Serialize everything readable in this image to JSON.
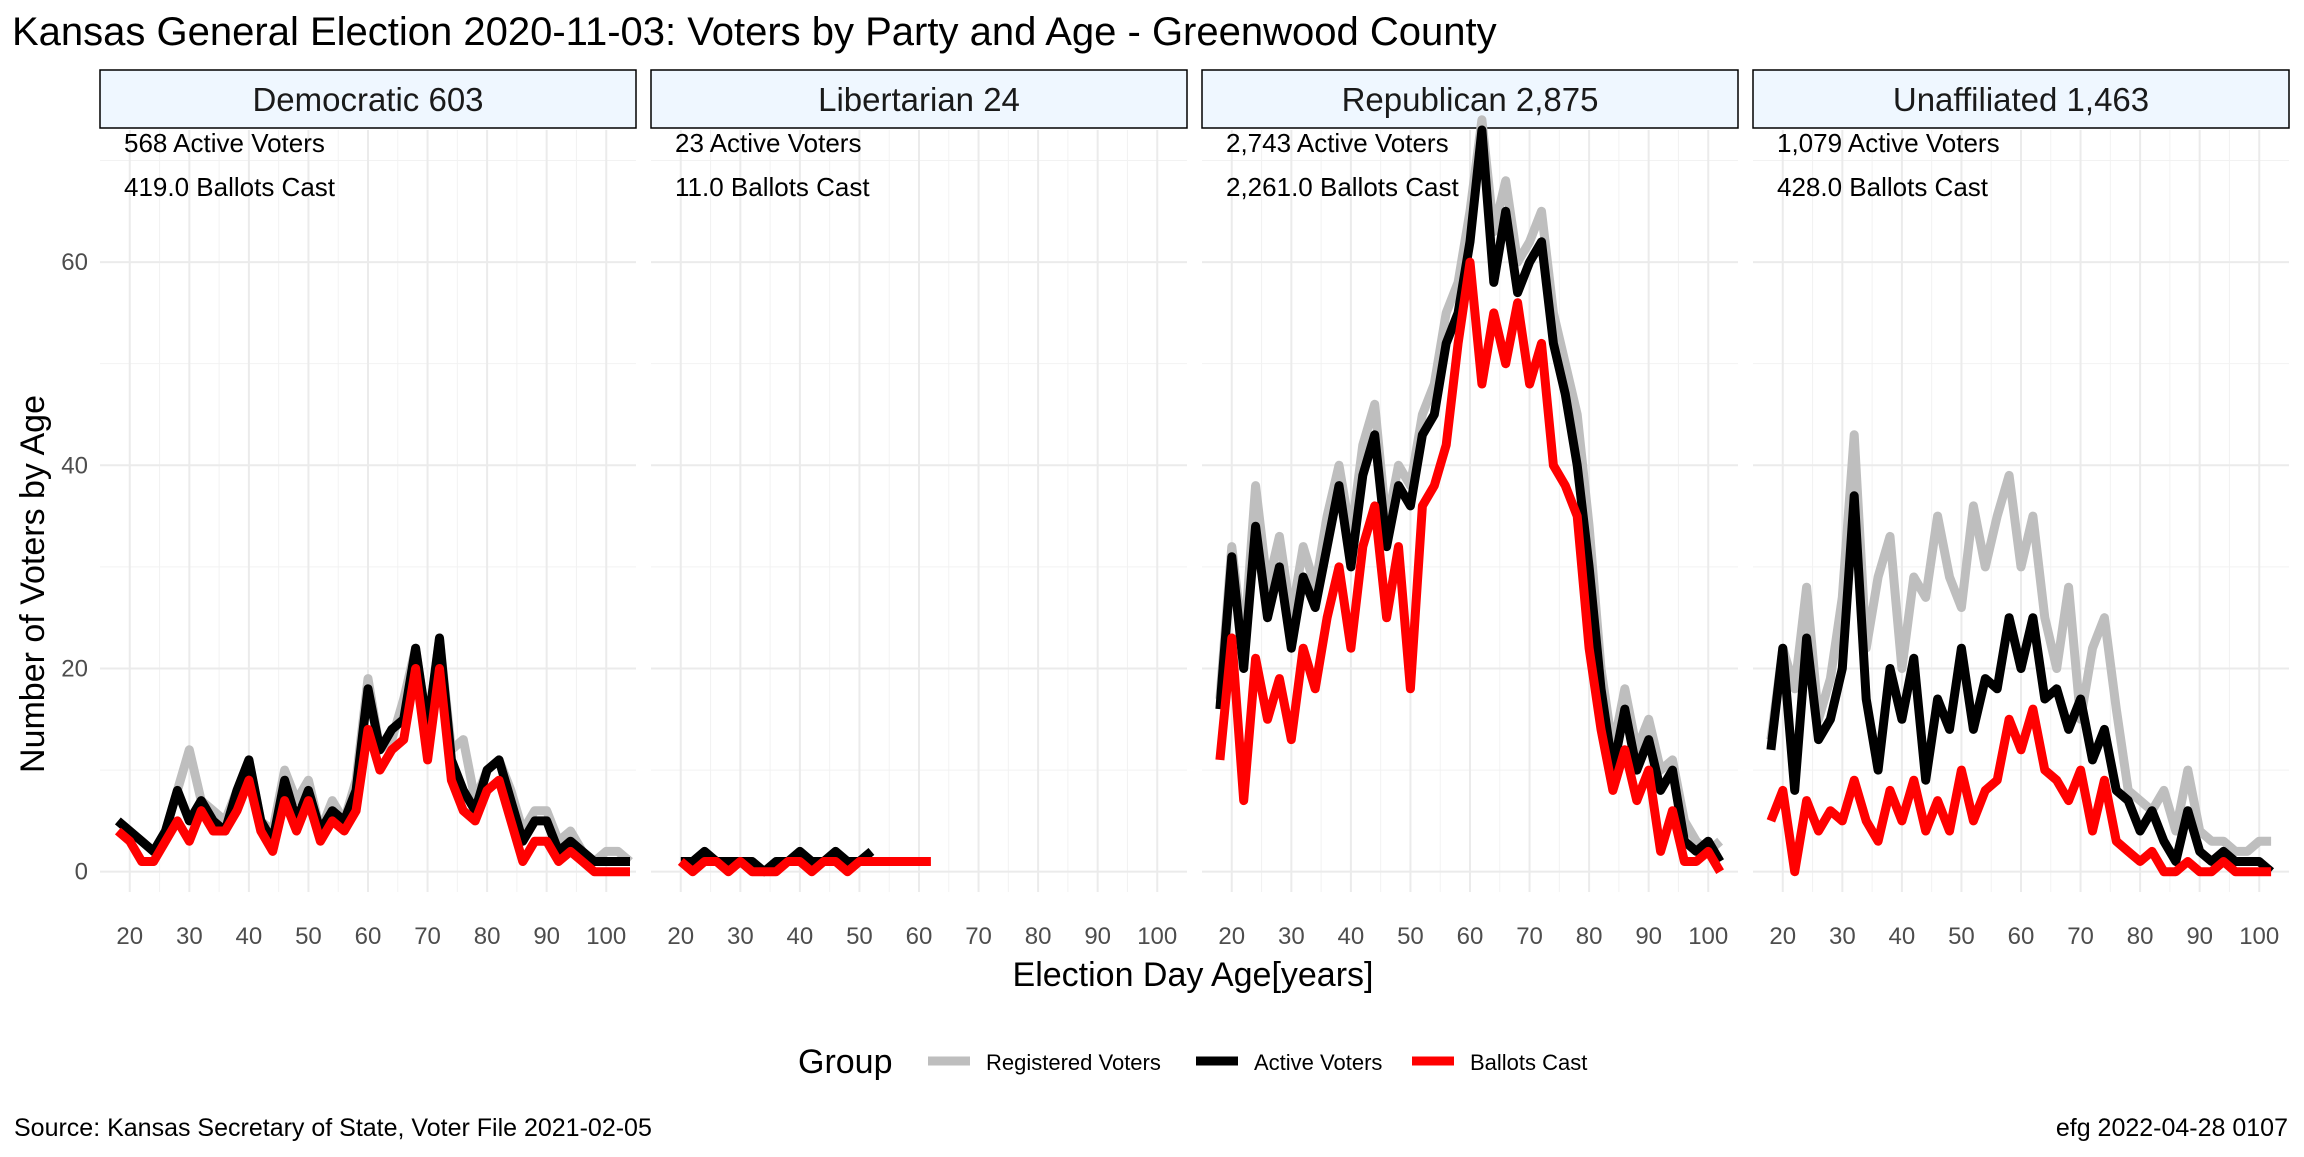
{
  "chart_data": {
    "type": "line",
    "title": "Kansas General Election 2020-11-03:  Voters by Party and Age - Greenwood County",
    "xlabel": "Election Day Age[years]",
    "ylabel": "Number of Voters by Age",
    "xlim": [
      15,
      105
    ],
    "ylim": [
      -2,
      73
    ],
    "x_ticks": [
      20,
      30,
      40,
      50,
      60,
      70,
      80,
      90,
      100
    ],
    "y_ticks": [
      0,
      20,
      40,
      60
    ],
    "legend": {
      "title": "Group",
      "position": "bottom",
      "entries": [
        {
          "label": "Registered Voters",
          "color": "#bebebe"
        },
        {
          "label": "Active Voters",
          "color": "#000000"
        },
        {
          "label": "Ballots Cast",
          "color": "#ff0000"
        }
      ]
    },
    "caption_left": "Source:  Kansas Secretary of State, Voter File  2021-02-05",
    "caption_right": "efg 2022-04-28 0107",
    "colors": {
      "registered": "#bebebe",
      "active": "#000000",
      "ballots": "#ff0000",
      "strip_fill": "#eff7ff",
      "grid": "#ebebeb"
    },
    "panels": [
      {
        "strip": "Democratic 603",
        "active_text": "568 Active Voters",
        "ballots_text": "419.0 Ballots Cast",
        "series": [
          {
            "name": "Registered Voters",
            "x": [
              18,
              20,
              22,
              24,
              26,
              28,
              30,
              32,
              34,
              36,
              38,
              40,
              42,
              44,
              46,
              48,
              50,
              52,
              54,
              56,
              58,
              60,
              62,
              64,
              66,
              68,
              70,
              72,
              74,
              76,
              78,
              80,
              82,
              84,
              86,
              88,
              90,
              92,
              94,
              96,
              98,
              100,
              102,
              104
            ],
            "y": [
              5,
              4,
              3,
              2,
              4,
              8,
              12,
              7,
              6,
              5,
              8,
              11,
              5,
              4,
              10,
              7,
              9,
              4,
              7,
              5,
              9,
              19,
              12,
              13,
              17,
              22,
              14,
              23,
              12,
              13,
              7,
              10,
              11,
              8,
              4,
              6,
              6,
              3,
              4,
              2,
              1,
              2,
              2,
              1
            ]
          },
          {
            "name": "Active Voters",
            "x": [
              18,
              20,
              22,
              24,
              26,
              28,
              30,
              32,
              34,
              36,
              38,
              40,
              42,
              44,
              46,
              48,
              50,
              52,
              54,
              56,
              58,
              60,
              62,
              64,
              66,
              68,
              70,
              72,
              74,
              76,
              78,
              80,
              82,
              84,
              86,
              88,
              90,
              92,
              94,
              96,
              98,
              100,
              102,
              104
            ],
            "y": [
              5,
              4,
              3,
              2,
              4,
              8,
              5,
              7,
              5,
              4,
              8,
              11,
              5,
              3,
              9,
              5,
              8,
              4,
              6,
              5,
              8,
              18,
              12,
              14,
              15,
              22,
              14,
              23,
              11,
              8,
              6,
              10,
              11,
              7,
              3,
              5,
              5,
              2,
              3,
              2,
              1,
              1,
              1,
              1
            ]
          },
          {
            "name": "Ballots Cast",
            "x": [
              18,
              20,
              22,
              24,
              26,
              28,
              30,
              32,
              34,
              36,
              38,
              40,
              42,
              44,
              46,
              48,
              50,
              52,
              54,
              56,
              58,
              60,
              62,
              64,
              66,
              68,
              70,
              72,
              74,
              76,
              78,
              80,
              82,
              84,
              86,
              88,
              90,
              92,
              94,
              96,
              98,
              100,
              102,
              104
            ],
            "y": [
              4,
              3,
              1,
              1,
              3,
              5,
              3,
              6,
              4,
              4,
              6,
              9,
              4,
              2,
              7,
              4,
              7,
              3,
              5,
              4,
              6,
              14,
              10,
              12,
              13,
              20,
              11,
              20,
              9,
              6,
              5,
              8,
              9,
              5,
              1,
              3,
              3,
              1,
              2,
              1,
              0,
              0,
              0,
              0
            ]
          }
        ]
      },
      {
        "strip": "Libertarian 24",
        "active_text": "23 Active Voters",
        "ballots_text": "11.0 Ballots Cast",
        "series": [
          {
            "name": "Registered Voters",
            "x": [
              20,
              22,
              24,
              26,
              28,
              30,
              32,
              34,
              36,
              38,
              40,
              42,
              44,
              46,
              48,
              50,
              52
            ],
            "y": [
              1,
              1,
              2,
              1,
              1,
              1,
              1,
              0,
              1,
              1,
              2,
              1,
              1,
              2,
              1,
              1,
              2
            ]
          },
          {
            "name": "Active Voters",
            "x": [
              20,
              22,
              24,
              26,
              28,
              30,
              32,
              34,
              36,
              38,
              40,
              42,
              44,
              46,
              48,
              50,
              52
            ],
            "y": [
              1,
              1,
              2,
              1,
              1,
              1,
              1,
              0,
              1,
              1,
              2,
              1,
              1,
              2,
              1,
              1,
              2
            ]
          },
          {
            "name": "Ballots Cast",
            "x": [
              20,
              22,
              24,
              26,
              28,
              30,
              32,
              34,
              36,
              38,
              40,
              42,
              44,
              46,
              48,
              50,
              52,
              54,
              56,
              58,
              60,
              62
            ],
            "y": [
              1,
              0,
              1,
              1,
              0,
              1,
              0,
              0,
              0,
              1,
              1,
              0,
              1,
              1,
              0,
              1,
              1,
              1,
              1,
              1,
              1,
              1
            ]
          }
        ]
      },
      {
        "strip": "Republican 2,875",
        "active_text": "2,743 Active Voters",
        "ballots_text": "2,261.0 Ballots Cast",
        "series": [
          {
            "name": "Registered Voters",
            "x": [
              18,
              20,
              22,
              24,
              26,
              28,
              30,
              32,
              34,
              36,
              38,
              40,
              42,
              44,
              46,
              48,
              50,
              52,
              54,
              56,
              58,
              60,
              62,
              64,
              66,
              68,
              70,
              72,
              74,
              76,
              78,
              80,
              82,
              84,
              86,
              88,
              90,
              92,
              94,
              96,
              98,
              100,
              102
            ],
            "y": [
              17,
              32,
              22,
              38,
              28,
              33,
              25,
              32,
              28,
              35,
              40,
              33,
              42,
              46,
              34,
              40,
              38,
              45,
              48,
              55,
              58,
              65,
              74,
              63,
              68,
              60,
              62,
              65,
              55,
              50,
              45,
              34,
              20,
              12,
              18,
              12,
              15,
              10,
              11,
              5,
              3,
              2,
              3
            ]
          },
          {
            "name": "Active Voters",
            "x": [
              18,
              20,
              22,
              24,
              26,
              28,
              30,
              32,
              34,
              36,
              38,
              40,
              42,
              44,
              46,
              48,
              50,
              52,
              54,
              56,
              58,
              60,
              62,
              64,
              66,
              68,
              70,
              72,
              74,
              76,
              78,
              80,
              82,
              84,
              86,
              88,
              90,
              92,
              94,
              96,
              98,
              100,
              102
            ],
            "y": [
              16,
              31,
              20,
              34,
              25,
              30,
              22,
              29,
              26,
              32,
              38,
              30,
              39,
              43,
              32,
              38,
              36,
              43,
              45,
              52,
              55,
              62,
              73,
              58,
              65,
              57,
              60,
              62,
              52,
              47,
              40,
              30,
              18,
              10,
              16,
              10,
              13,
              8,
              10,
              3,
              2,
              3,
              1
            ]
          },
          {
            "name": "Ballots Cast",
            "x": [
              18,
              20,
              22,
              24,
              26,
              28,
              30,
              32,
              34,
              36,
              38,
              40,
              42,
              44,
              46,
              48,
              50,
              52,
              54,
              56,
              58,
              60,
              62,
              64,
              66,
              68,
              70,
              72,
              74,
              76,
              78,
              80,
              82,
              84,
              86,
              88,
              90,
              92,
              94,
              96,
              98,
              100,
              102
            ],
            "y": [
              11,
              23,
              7,
              21,
              15,
              19,
              13,
              22,
              18,
              25,
              30,
              22,
              32,
              36,
              25,
              32,
              18,
              36,
              38,
              42,
              52,
              60,
              48,
              55,
              50,
              56,
              48,
              52,
              40,
              38,
              35,
              22,
              14,
              8,
              12,
              7,
              10,
              2,
              6,
              1,
              1,
              2,
              0
            ]
          }
        ]
      },
      {
        "strip": "Unaffiliated 1,463",
        "active_text": "1,079 Active Voters",
        "ballots_text": "428.0 Ballots Cast",
        "series": [
          {
            "name": "Registered Voters",
            "x": [
              18,
              20,
              22,
              24,
              26,
              28,
              30,
              32,
              34,
              36,
              38,
              40,
              42,
              44,
              46,
              48,
              50,
              52,
              54,
              56,
              58,
              60,
              62,
              64,
              66,
              68,
              70,
              72,
              74,
              76,
              78,
              80,
              82,
              84,
              86,
              88,
              90,
              92,
              94,
              96,
              98,
              100,
              102
            ],
            "y": [
              13,
              22,
              18,
              28,
              15,
              19,
              27,
              43,
              22,
              29,
              33,
              20,
              29,
              27,
              35,
              29,
              26,
              36,
              30,
              35,
              39,
              30,
              35,
              25,
              20,
              28,
              15,
              22,
              25,
              16,
              8,
              7,
              6,
              8,
              4,
              10,
              4,
              3,
              3,
              2,
              2,
              3,
              3
            ]
          },
          {
            "name": "Active Voters",
            "x": [
              18,
              20,
              22,
              24,
              26,
              28,
              30,
              32,
              34,
              36,
              38,
              40,
              42,
              44,
              46,
              48,
              50,
              52,
              54,
              56,
              58,
              60,
              62,
              64,
              66,
              68,
              70,
              72,
              74,
              76,
              78,
              80,
              82,
              84,
              86,
              88,
              90,
              92,
              94,
              96,
              98,
              100,
              102
            ],
            "y": [
              12,
              22,
              8,
              23,
              13,
              15,
              20,
              37,
              17,
              10,
              20,
              15,
              21,
              9,
              17,
              14,
              22,
              14,
              19,
              18,
              25,
              20,
              25,
              17,
              18,
              14,
              17,
              11,
              14,
              8,
              7,
              4,
              6,
              3,
              1,
              6,
              2,
              1,
              2,
              1,
              1,
              1,
              0
            ]
          },
          {
            "name": "Ballots Cast",
            "x": [
              18,
              20,
              22,
              24,
              26,
              28,
              30,
              32,
              34,
              36,
              38,
              40,
              42,
              44,
              46,
              48,
              50,
              52,
              54,
              56,
              58,
              60,
              62,
              64,
              66,
              68,
              70,
              72,
              74,
              76,
              78,
              80,
              82,
              84,
              86,
              88,
              90,
              92,
              94,
              96,
              98,
              100,
              102
            ],
            "y": [
              5,
              8,
              0,
              7,
              4,
              6,
              5,
              9,
              5,
              3,
              8,
              5,
              9,
              4,
              7,
              4,
              10,
              5,
              8,
              9,
              15,
              12,
              16,
              10,
              9,
              7,
              10,
              4,
              9,
              3,
              2,
              1,
              2,
              0,
              0,
              1,
              0,
              0,
              1,
              0,
              0,
              0,
              0
            ]
          }
        ]
      }
    ]
  }
}
